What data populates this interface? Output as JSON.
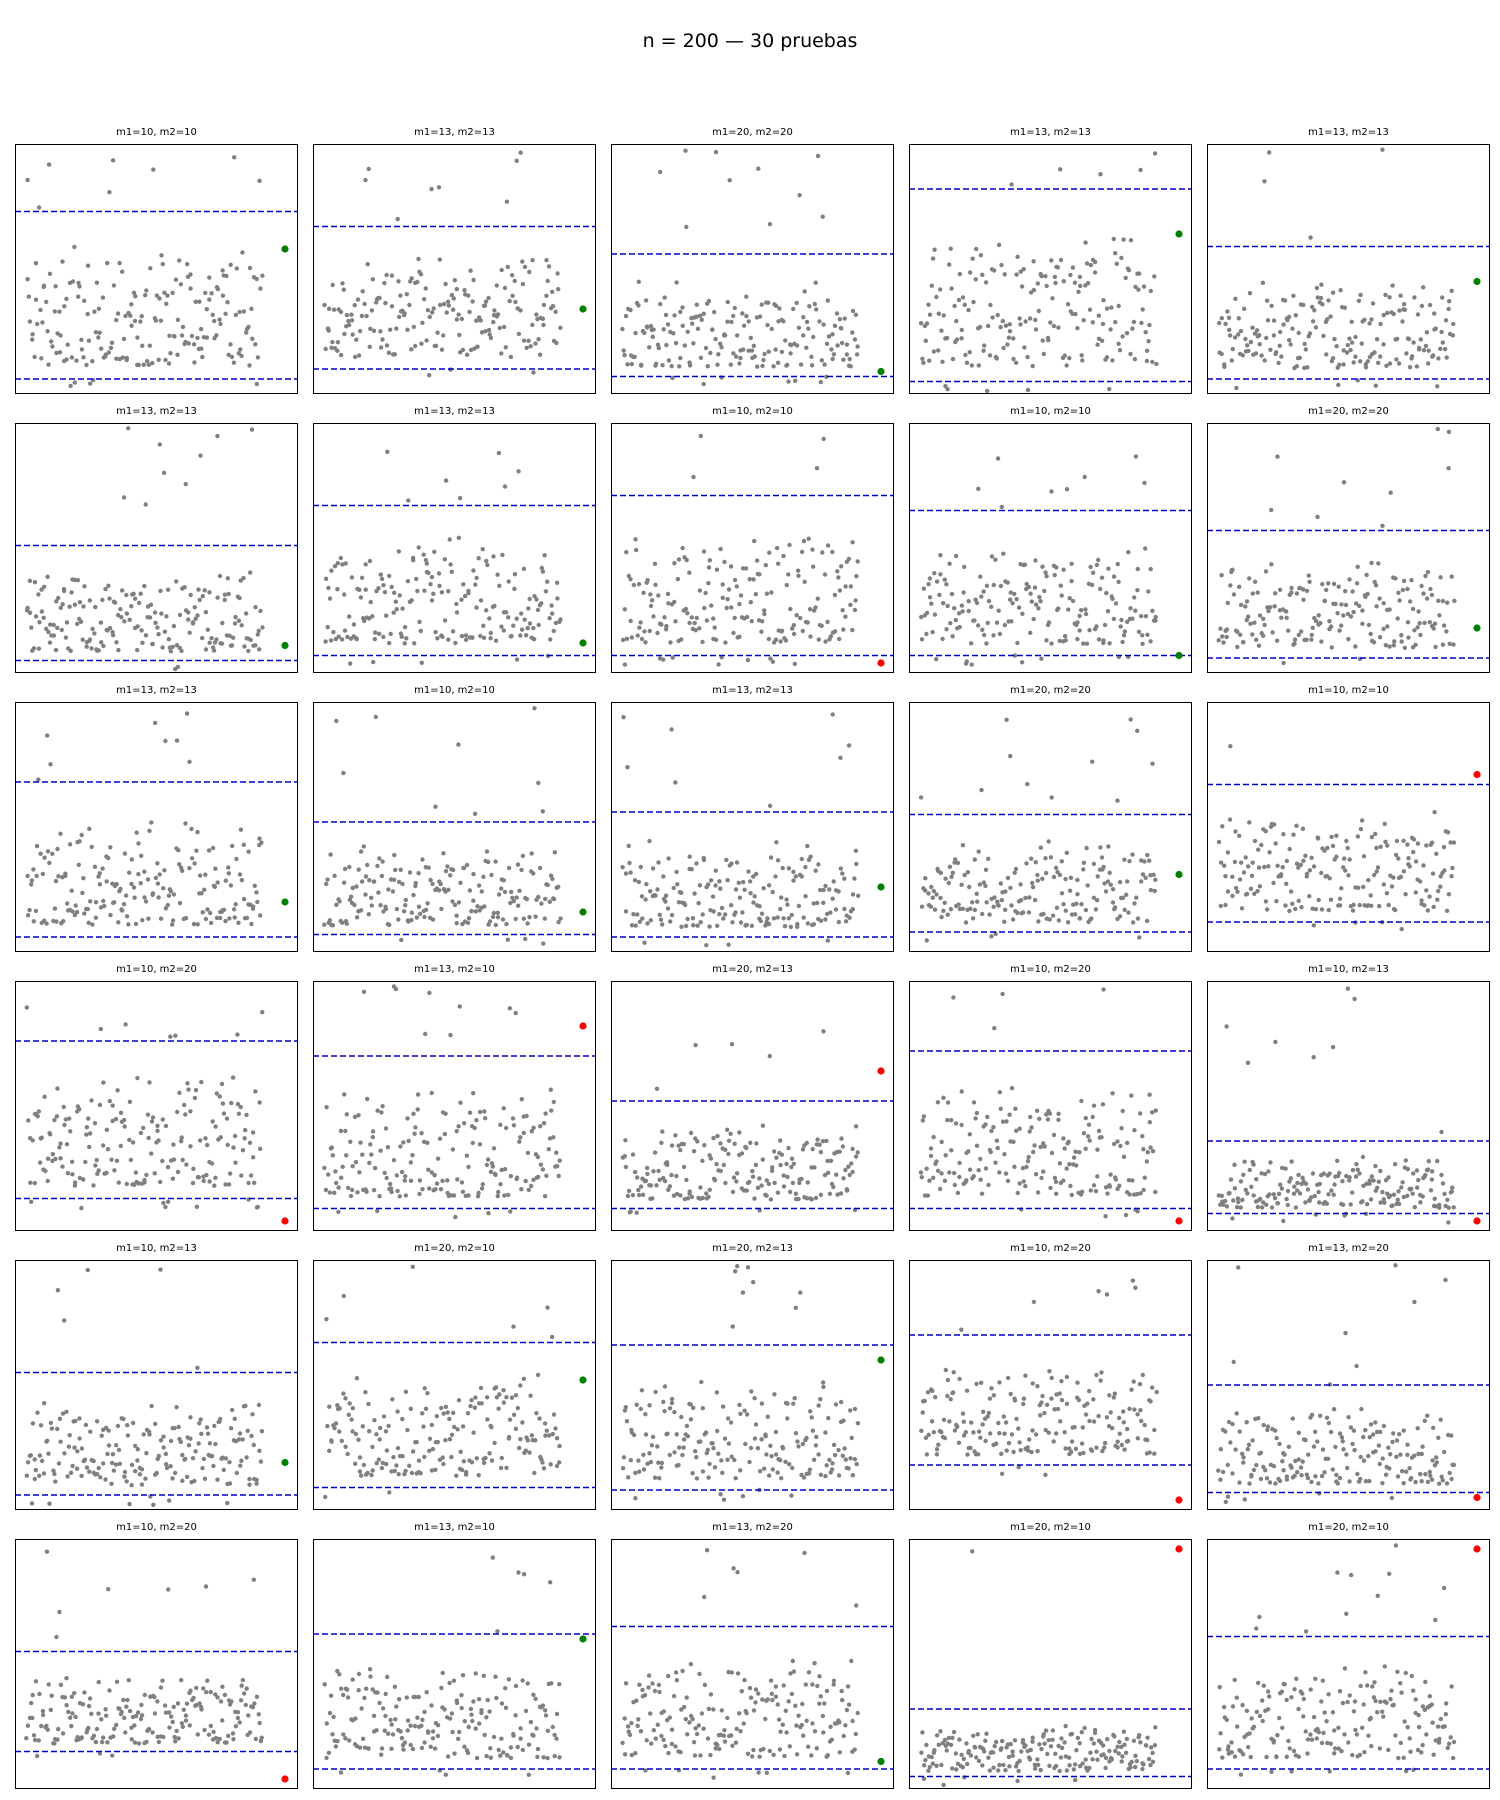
{
  "figure": {
    "title": "n = 200 — 30 pruebas",
    "n_points": 200,
    "colors": {
      "points": "#808080",
      "limits": "#0000cc",
      "inside": "#008000",
      "outside": "#ff0000",
      "frame": "#000000"
    }
  },
  "chart_data": [
    {
      "type": "scatter",
      "title": "m1=10, m2=10",
      "lower": 0.06,
      "upper": 0.73,
      "obs": 0.58,
      "obs_color": "green"
    },
    {
      "type": "scatter",
      "title": "m1=13, m2=13",
      "lower": 0.1,
      "upper": 0.67,
      "obs": 0.34,
      "obs_color": "green"
    },
    {
      "type": "scatter",
      "title": "m1=20, m2=20",
      "lower": 0.07,
      "upper": 0.56,
      "obs": 0.09,
      "obs_color": "green"
    },
    {
      "type": "scatter",
      "title": "m1=13, m2=13",
      "lower": 0.05,
      "upper": 0.82,
      "obs": 0.64,
      "obs_color": "green"
    },
    {
      "type": "scatter",
      "title": "m1=13, m2=13",
      "lower": 0.06,
      "upper": 0.59,
      "obs": 0.45,
      "obs_color": "green"
    },
    {
      "type": "scatter",
      "title": "m1=13, m2=13",
      "lower": 0.05,
      "upper": 0.51,
      "obs": 0.11,
      "obs_color": "green"
    },
    {
      "type": "scatter",
      "title": "m1=13, m2=13",
      "lower": 0.07,
      "upper": 0.67,
      "obs": 0.12,
      "obs_color": "green"
    },
    {
      "type": "scatter",
      "title": "m1=10, m2=10",
      "lower": 0.07,
      "upper": 0.71,
      "obs": 0.04,
      "obs_color": "red"
    },
    {
      "type": "scatter",
      "title": "m1=10, m2=10",
      "lower": 0.07,
      "upper": 0.65,
      "obs": 0.07,
      "obs_color": "green"
    },
    {
      "type": "scatter",
      "title": "m1=20, m2=20",
      "lower": 0.06,
      "upper": 0.57,
      "obs": 0.18,
      "obs_color": "green"
    },
    {
      "type": "scatter",
      "title": "m1=13, m2=13",
      "lower": 0.06,
      "upper": 0.68,
      "obs": 0.2,
      "obs_color": "green"
    },
    {
      "type": "scatter",
      "title": "m1=10, m2=10",
      "lower": 0.07,
      "upper": 0.52,
      "obs": 0.16,
      "obs_color": "green"
    },
    {
      "type": "scatter",
      "title": "m1=13, m2=13",
      "lower": 0.06,
      "upper": 0.56,
      "obs": 0.26,
      "obs_color": "green"
    },
    {
      "type": "scatter",
      "title": "m1=20, m2=20",
      "lower": 0.08,
      "upper": 0.55,
      "obs": 0.31,
      "obs_color": "green"
    },
    {
      "type": "scatter",
      "title": "m1=10, m2=10",
      "lower": 0.12,
      "upper": 0.67,
      "obs": 0.71,
      "obs_color": "red"
    },
    {
      "type": "scatter",
      "title": "m1=10, m2=20",
      "lower": 0.13,
      "upper": 0.76,
      "obs": 0.04,
      "obs_color": "red"
    },
    {
      "type": "scatter",
      "title": "m1=13, m2=10",
      "lower": 0.09,
      "upper": 0.7,
      "obs": 0.82,
      "obs_color": "red"
    },
    {
      "type": "scatter",
      "title": "m1=20, m2=13",
      "lower": 0.09,
      "upper": 0.52,
      "obs": 0.64,
      "obs_color": "red"
    },
    {
      "type": "scatter",
      "title": "m1=10, m2=20",
      "lower": 0.09,
      "upper": 0.72,
      "obs": 0.04,
      "obs_color": "red"
    },
    {
      "type": "scatter",
      "title": "m1=10, m2=13",
      "lower": 0.07,
      "upper": 0.36,
      "obs": 0.04,
      "obs_color": "red"
    },
    {
      "type": "scatter",
      "title": "m1=10, m2=13",
      "lower": 0.06,
      "upper": 0.55,
      "obs": 0.19,
      "obs_color": "green"
    },
    {
      "type": "scatter",
      "title": "m1=20, m2=10",
      "lower": 0.09,
      "upper": 0.67,
      "obs": 0.52,
      "obs_color": "green"
    },
    {
      "type": "scatter",
      "title": "m1=20, m2=13",
      "lower": 0.08,
      "upper": 0.66,
      "obs": 0.6,
      "obs_color": "green"
    },
    {
      "type": "scatter",
      "title": "m1=10, m2=20",
      "lower": 0.18,
      "upper": 0.7,
      "obs": 0.04,
      "obs_color": "red"
    },
    {
      "type": "scatter",
      "title": "m1=13, m2=20",
      "lower": 0.07,
      "upper": 0.5,
      "obs": 0.05,
      "obs_color": "red"
    },
    {
      "type": "scatter",
      "title": "m1=10, m2=20",
      "lower": 0.15,
      "upper": 0.55,
      "obs": 0.04,
      "obs_color": "red"
    },
    {
      "type": "scatter",
      "title": "m1=13, m2=10",
      "lower": 0.08,
      "upper": 0.62,
      "obs": 0.6,
      "obs_color": "green"
    },
    {
      "type": "scatter",
      "title": "m1=13, m2=20",
      "lower": 0.08,
      "upper": 0.65,
      "obs": 0.11,
      "obs_color": "green"
    },
    {
      "type": "scatter",
      "title": "m1=20, m2=10",
      "lower": 0.05,
      "upper": 0.32,
      "obs": 0.96,
      "obs_color": "red"
    },
    {
      "type": "scatter",
      "title": "m1=20, m2=10",
      "lower": 0.08,
      "upper": 0.61,
      "obs": 0.96,
      "obs_color": "red"
    }
  ]
}
